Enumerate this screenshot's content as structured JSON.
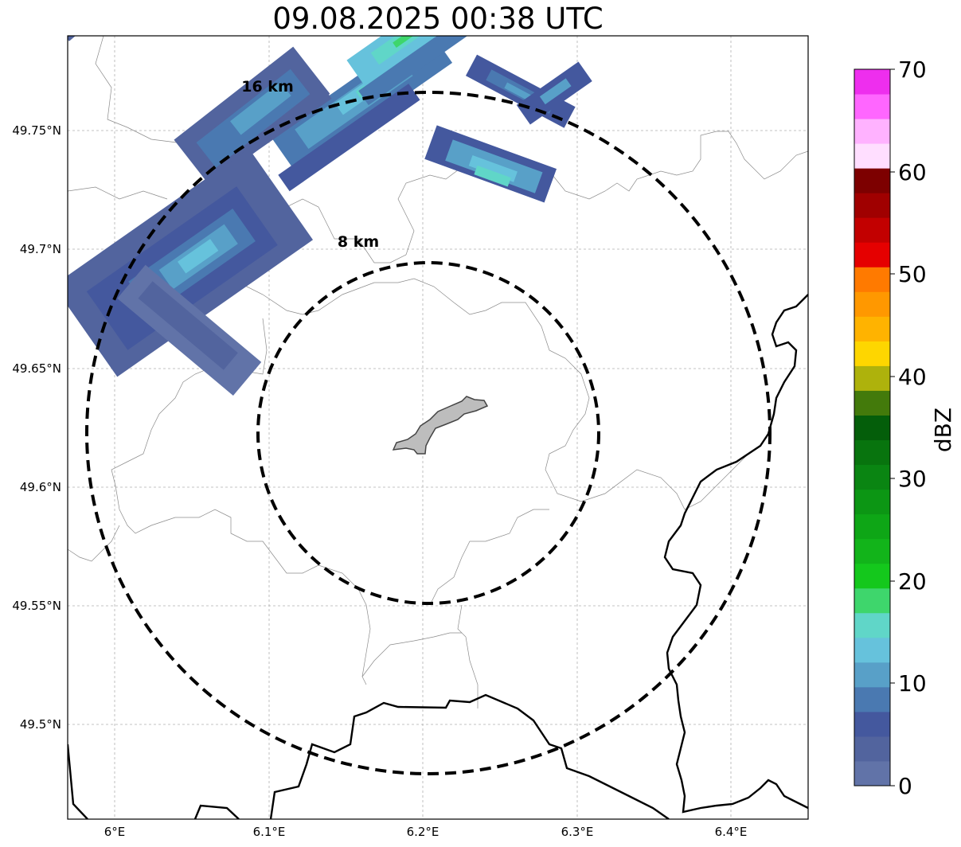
{
  "title": "09.08.2025 00:38 UTC",
  "map": {
    "lon_ticks": [
      "6°E",
      "6.1°E",
      "6.2°E",
      "6.3°E",
      "6.4°E"
    ],
    "lat_ticks": [
      "49.75°N",
      "49.7°N",
      "49.65°N",
      "49.6°N",
      "49.55°N",
      "49.5°N"
    ],
    "gridlines": true,
    "range_rings": [
      {
        "label": "16 km",
        "radius_km": 16
      },
      {
        "label": "8 km",
        "radius_km": 8
      }
    ]
  },
  "colorbar": {
    "label": "dBZ",
    "ticks": [
      "70",
      "60",
      "50",
      "40",
      "30",
      "20",
      "10",
      "0"
    ],
    "range": [
      0,
      70
    ],
    "colors": [
      "#6173a8",
      "#52649e",
      "#44589e",
      "#4a79b1",
      "#58a0c8",
      "#66c2dc",
      "#60d6c8",
      "#3ed66c",
      "#14c81c",
      "#12b41a",
      "#0ea616",
      "#0c9614",
      "#0a8512",
      "#08740e",
      "#045e0a",
      "#437a0b",
      "#aeb20c",
      "#fed600",
      "#ffb300",
      "#ff9800",
      "#ff7a00",
      "#e50000",
      "#c20000",
      "#a00000",
      "#7d0000",
      "#ffdeff",
      "#ffb2ff",
      "#ff66ff",
      "#ee2eee"
    ]
  }
}
